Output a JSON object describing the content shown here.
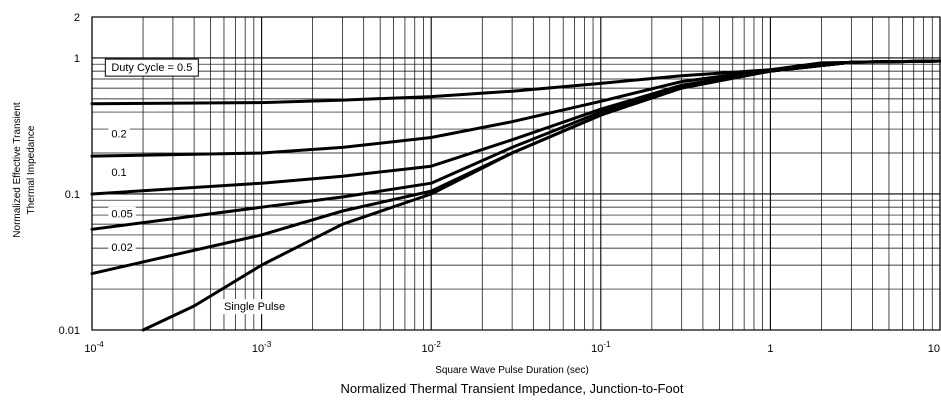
{
  "chart_data": {
    "type": "line",
    "title": "Normalized Thermal Transient Impedance, Junction-to-Foot",
    "xlabel": "Square Wave Pulse Duration (sec)",
    "ylabel_lines": [
      "Normalized Effective Transient",
      "Thermal Impedance"
    ],
    "x_scale": "log",
    "y_scale": "log",
    "xlim": [
      0.0001,
      10
    ],
    "ylim": [
      0.01,
      2
    ],
    "grid": true,
    "x_ticks": [
      {
        "value": 0.0001,
        "base": "10",
        "exp": "-4"
      },
      {
        "value": 0.001,
        "base": "10",
        "exp": "-3"
      },
      {
        "value": 0.01,
        "base": "10",
        "exp": "-2"
      },
      {
        "value": 0.1,
        "base": "10",
        "exp": "-1"
      },
      {
        "value": 1,
        "base": "1",
        "exp": ""
      },
      {
        "value": 10,
        "base": "10",
        "exp": ""
      }
    ],
    "y_ticks": [
      {
        "value": 2,
        "label": "2"
      },
      {
        "value": 1,
        "label": "1"
      },
      {
        "value": 0.1,
        "label": "0.1"
      },
      {
        "value": 0.01,
        "label": "0.01"
      }
    ],
    "series": [
      {
        "name": "Duty Cycle = 0.5",
        "points": [
          [
            0.0001,
            0.46
          ],
          [
            0.001,
            0.47
          ],
          [
            0.003,
            0.49
          ],
          [
            0.01,
            0.52
          ],
          [
            0.03,
            0.57
          ],
          [
            0.1,
            0.65
          ],
          [
            0.3,
            0.74
          ],
          [
            1,
            0.82
          ],
          [
            2,
            0.92
          ],
          [
            10,
            0.95
          ]
        ]
      },
      {
        "name": "0.2",
        "points": [
          [
            0.0001,
            0.19
          ],
          [
            0.001,
            0.2
          ],
          [
            0.003,
            0.22
          ],
          [
            0.01,
            0.26
          ],
          [
            0.03,
            0.34
          ],
          [
            0.1,
            0.48
          ],
          [
            0.3,
            0.67
          ],
          [
            1,
            0.82
          ],
          [
            3,
            0.93
          ],
          [
            10,
            0.95
          ]
        ]
      },
      {
        "name": "0.1",
        "points": [
          [
            0.0001,
            0.1
          ],
          [
            0.001,
            0.12
          ],
          [
            0.003,
            0.135
          ],
          [
            0.01,
            0.16
          ],
          [
            0.03,
            0.25
          ],
          [
            0.1,
            0.42
          ],
          [
            0.3,
            0.63
          ],
          [
            1,
            0.8
          ],
          [
            3,
            0.93
          ],
          [
            10,
            0.95
          ]
        ]
      },
      {
        "name": "0.05",
        "points": [
          [
            0.0001,
            0.055
          ],
          [
            0.001,
            0.08
          ],
          [
            0.003,
            0.095
          ],
          [
            0.01,
            0.12
          ],
          [
            0.03,
            0.22
          ],
          [
            0.1,
            0.4
          ],
          [
            0.3,
            0.62
          ],
          [
            1,
            0.8
          ],
          [
            3,
            0.93
          ],
          [
            10,
            0.95
          ]
        ]
      },
      {
        "name": "0.02",
        "points": [
          [
            0.0001,
            0.026
          ],
          [
            0.001,
            0.05
          ],
          [
            0.003,
            0.075
          ],
          [
            0.01,
            0.105
          ],
          [
            0.03,
            0.2
          ],
          [
            0.1,
            0.38
          ],
          [
            0.3,
            0.61
          ],
          [
            1,
            0.8
          ],
          [
            3,
            0.93
          ],
          [
            10,
            0.95
          ]
        ]
      },
      {
        "name": "Single Pulse",
        "points": [
          [
            0.0002,
            0.01
          ],
          [
            0.0004,
            0.015
          ],
          [
            0.001,
            0.03
          ],
          [
            0.003,
            0.06
          ],
          [
            0.01,
            0.1
          ],
          [
            0.03,
            0.2
          ],
          [
            0.1,
            0.38
          ],
          [
            0.3,
            0.6
          ],
          [
            1,
            0.8
          ],
          [
            3,
            0.93
          ],
          [
            10,
            0.95
          ]
        ]
      }
    ],
    "labels": [
      {
        "text": "Duty Cycle = 0.5",
        "x": 0.00013,
        "y": 0.8,
        "boxed": true
      },
      {
        "text": "0.2",
        "x": 0.00013,
        "y": 0.26
      },
      {
        "text": "0.1",
        "x": 0.00013,
        "y": 0.135
      },
      {
        "text": "0.05",
        "x": 0.00013,
        "y": 0.067
      },
      {
        "text": "0.02",
        "x": 0.00013,
        "y": 0.038
      },
      {
        "text": "Single Pulse",
        "x": 0.0006,
        "y": 0.014
      }
    ]
  }
}
